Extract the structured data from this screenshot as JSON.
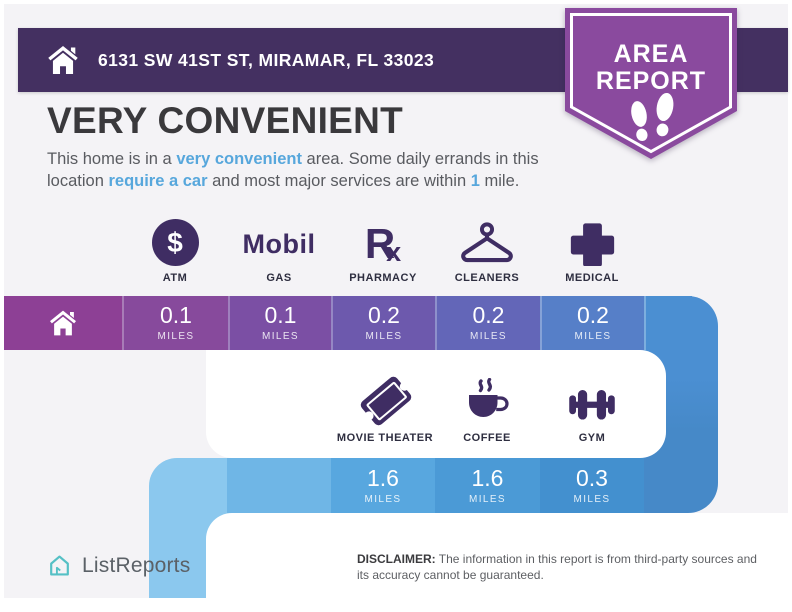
{
  "header": {
    "address": "6131 SW 41ST ST, MIRAMAR, FL 33023"
  },
  "badge": {
    "line1": "AREA",
    "line2": "REPORT"
  },
  "summary": {
    "title": "VERY CONVENIENT",
    "paragraph": [
      {
        "text": "This home is in a ",
        "highlight": false
      },
      {
        "text": "very convenient",
        "highlight": true
      },
      {
        "text": " area. Some daily errands in this location ",
        "highlight": false
      },
      {
        "text": "require a car",
        "highlight": true
      },
      {
        "text": " and most major services are within ",
        "highlight": false
      },
      {
        "text": "1",
        "highlight": true
      },
      {
        "text": " mile.",
        "highlight": false
      }
    ]
  },
  "amenities": {
    "row1": [
      {
        "label": "ATM",
        "icon": "atm-dollar-icon",
        "distance": "0.1",
        "unit": "MILES"
      },
      {
        "label": "GAS",
        "icon": "mobil-logo-icon",
        "distance": "0.1",
        "unit": "MILES"
      },
      {
        "label": "PHARMACY",
        "icon": "rx-icon",
        "distance": "0.2",
        "unit": "MILES"
      },
      {
        "label": "CLEANERS",
        "icon": "hanger-icon",
        "distance": "0.2",
        "unit": "MILES"
      },
      {
        "label": "MEDICAL",
        "icon": "medical-cross-icon",
        "distance": "0.2",
        "unit": "MILES"
      }
    ],
    "row2": [
      {
        "label": "MOVIE THEATER",
        "icon": "movie-ticket-icon",
        "distance": "1.6",
        "unit": "MILES"
      },
      {
        "label": "COFFEE",
        "icon": "coffee-cup-icon",
        "distance": "1.6",
        "unit": "MILES"
      },
      {
        "label": "GYM",
        "icon": "dumbbell-icon",
        "distance": "0.3",
        "unit": "MILES"
      }
    ]
  },
  "footer": {
    "brand": "ListReports",
    "disclaimer_label": "DISCLAIMER:",
    "disclaimer_text": " The information in this report is from third-party sources and its accuracy cannot be guaranteed."
  },
  "colors": {
    "header_bar": "#443061",
    "badge": "#8a4a9e",
    "highlight_text": "#57a7dc",
    "icon_dark_purple": "#3f2d63",
    "brand_teal": "#55c0c5",
    "bar1_segments": [
      "#8d4095",
      "#874a9c",
      "#7b4fa4",
      "#6d59ad",
      "#6366b8",
      "#567fc8"
    ],
    "bar1_tail": "#4b8fd2",
    "bar2_segments": [
      "#8bc8ee",
      "#6fb6e6",
      "#58a7df",
      "#4b9ad6",
      "#4390cf"
    ],
    "bar2_tail": "#4689c8"
  }
}
